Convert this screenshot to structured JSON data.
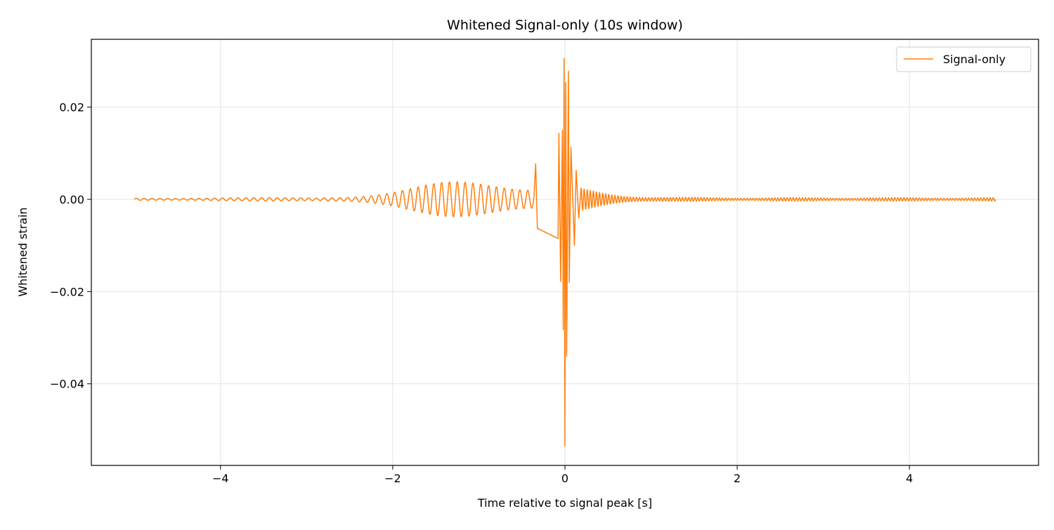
{
  "chart_data": {
    "type": "line",
    "title": "Whitened Signal-only (10s window)",
    "xlabel": "Time relative to signal peak [s]",
    "ylabel": "Whitened strain",
    "xlim": [
      -5.5,
      5.5
    ],
    "ylim": [
      -0.0577,
      0.0347
    ],
    "x_ticks": [
      -4,
      -2,
      0,
      2,
      4
    ],
    "x_tick_labels": [
      "−4",
      "−2",
      "0",
      "2",
      "4"
    ],
    "y_ticks": [
      0.02,
      0.0,
      -0.02,
      -0.04
    ],
    "y_tick_labels": [
      "0.02",
      "0.00",
      "−0.02",
      "−0.04"
    ],
    "grid": true,
    "legend_position": "top-right",
    "series": [
      {
        "name": "Signal-only",
        "color": "#ff7f0e",
        "x_range": [
          -5.0,
          5.0
        ],
        "peak_points": [
          {
            "x": -0.34,
            "y": 0.0077
          },
          {
            "x": -0.32,
            "y": -0.0063
          },
          {
            "x": -0.08,
            "y": -0.0085
          },
          {
            "x": -0.07,
            "y": 0.0143
          },
          {
            "x": -0.05,
            "y": -0.0178
          },
          {
            "x": -0.03,
            "y": 0.015
          },
          {
            "x": -0.02,
            "y": -0.0283
          },
          {
            "x": -0.01,
            "y": 0.0305
          },
          {
            "x": 0.0,
            "y": -0.0535
          },
          {
            "x": 0.01,
            "y": 0.0253
          },
          {
            "x": 0.02,
            "y": -0.034
          },
          {
            "x": 0.04,
            "y": 0.0278
          },
          {
            "x": 0.05,
            "y": -0.018
          },
          {
            "x": 0.07,
            "y": 0.0113
          },
          {
            "x": 0.11,
            "y": -0.01
          },
          {
            "x": 0.13,
            "y": 0.0063
          },
          {
            "x": 0.16,
            "y": -0.004
          }
        ]
      }
    ]
  }
}
